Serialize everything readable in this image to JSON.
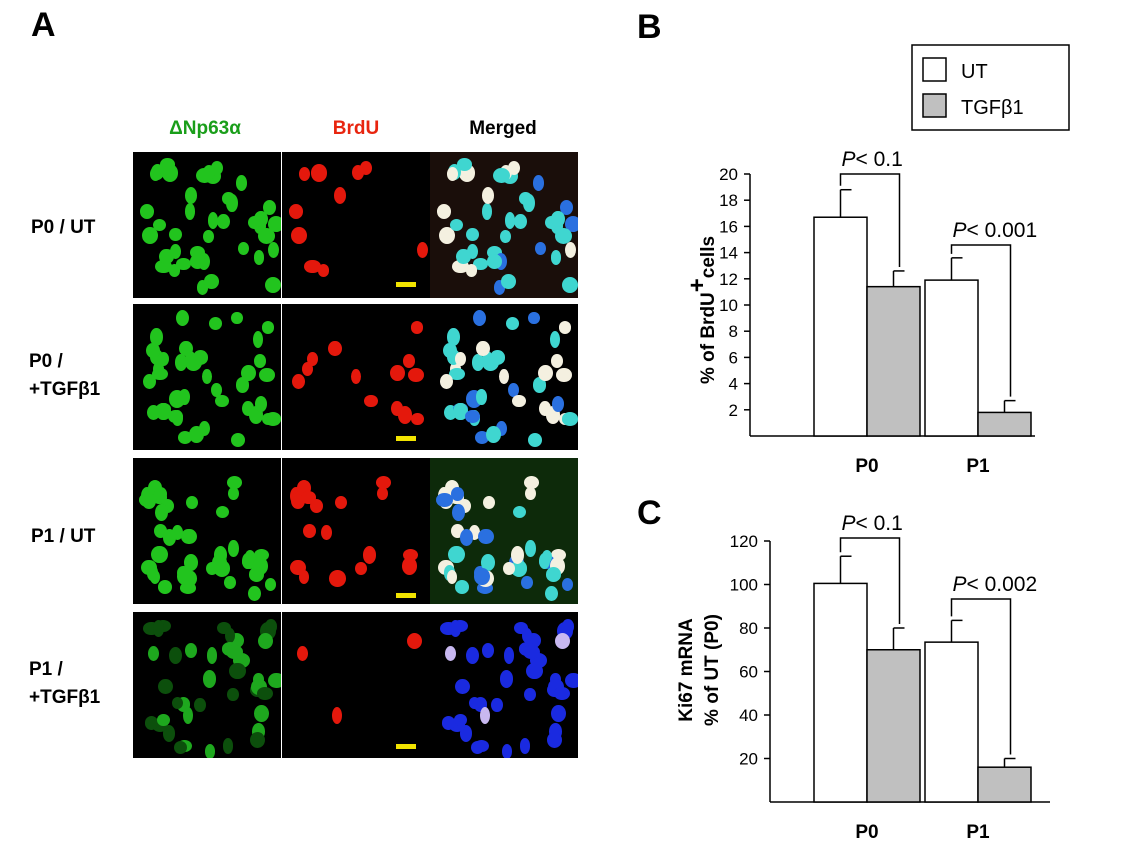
{
  "panel_a": {
    "letter": "A",
    "columns": [
      "ΔNp63α",
      "BrdU",
      "Merged"
    ],
    "column_colors": [
      "#1a9e1a",
      "#e8250f",
      "#000000"
    ],
    "rows": [
      {
        "line1": "P0 / UT",
        "line2": ""
      },
      {
        "line1": "P0 /",
        "line2": "+TGFβ1"
      },
      {
        "line1": "P1 / UT",
        "line2": ""
      },
      {
        "line1": "P1 /",
        "line2": "+TGFβ1"
      }
    ]
  },
  "chart_data": [
    {
      "panel": "B",
      "type": "bar",
      "categories": [
        "P0",
        "P1"
      ],
      "series": [
        {
          "name": "UT",
          "color": "#ffffff",
          "values": [
            16.7,
            11.9
          ],
          "errors": [
            2.1,
            1.7
          ]
        },
        {
          "name": "TGFβ1",
          "color": "#c0c0c0",
          "values": [
            11.4,
            1.8
          ],
          "errors": [
            1.2,
            0.9
          ]
        }
      ],
      "ylabel_prefix": "% of BrdU",
      "ylabel_sup": "+",
      "ylabel_suffix": "cells",
      "ylim": [
        0,
        20
      ],
      "yticks": [
        2,
        4,
        6,
        8,
        10,
        12,
        14,
        16,
        18,
        20
      ],
      "annotations": [
        {
          "category": "P0",
          "p_letter": "P",
          "p_text": "< 0.1"
        },
        {
          "category": "P1",
          "p_letter": "P",
          "p_text": "< 0.001"
        }
      ],
      "legend": "top-right"
    },
    {
      "panel": "C",
      "type": "bar",
      "categories": [
        "P0",
        "P1"
      ],
      "series": [
        {
          "name": "UT",
          "color": "#ffffff",
          "values": [
            100.5,
            73.5
          ],
          "errors": [
            12.5,
            10.0
          ]
        },
        {
          "name": "TGFβ1",
          "color": "#c0c0c0",
          "values": [
            70.0,
            16.0
          ],
          "errors": [
            10.0,
            4.0
          ]
        }
      ],
      "ylabel_line1": "Ki67 mRNA",
      "ylabel_line2": "% of UT (P0)",
      "ylim": [
        0,
        120
      ],
      "yticks": [
        20,
        40,
        60,
        80,
        100,
        120
      ],
      "annotations": [
        {
          "category": "P0",
          "p_letter": "P",
          "p_text": "< 0.1"
        },
        {
          "category": "P1",
          "p_letter": "P",
          "p_text": "< 0.002"
        }
      ]
    }
  ]
}
